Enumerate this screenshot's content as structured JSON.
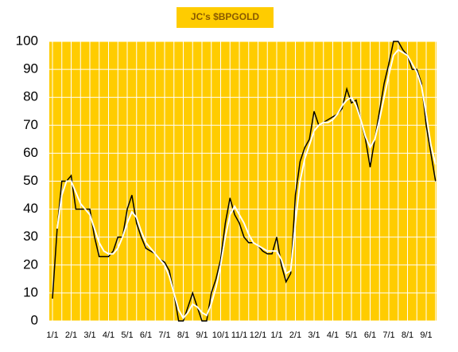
{
  "chart_data": {
    "type": "line",
    "title": "JC's $BPGOLD",
    "categories": [
      "1/1",
      null,
      null,
      null,
      "2/1",
      null,
      null,
      null,
      "3/1",
      null,
      null,
      null,
      "4/1",
      null,
      null,
      null,
      "5/1",
      null,
      null,
      null,
      "6/1",
      null,
      null,
      null,
      "7/1",
      null,
      null,
      null,
      "8/1",
      null,
      null,
      null,
      "9/1",
      null,
      null,
      null,
      "10/1",
      null,
      null,
      null,
      "11/1",
      null,
      null,
      null,
      "12/1",
      null,
      null,
      null,
      "1/1",
      null,
      null,
      null,
      "2/1",
      null,
      null,
      null,
      "3/1",
      null,
      null,
      null,
      "4/1",
      null,
      null,
      null,
      "5/1",
      null,
      null,
      null,
      "6/1",
      null,
      null,
      null,
      "7/1",
      null,
      null,
      null,
      "8/1",
      null,
      null,
      null,
      "9/1",
      null,
      null
    ],
    "series": [
      {
        "color": "#000000",
        "values": [
          8,
          33,
          50,
          50,
          52,
          40,
          40,
          40,
          40,
          30,
          23,
          23,
          23,
          25,
          30,
          30,
          40,
          45,
          35,
          30,
          26,
          25,
          24,
          22,
          21,
          18,
          10,
          0,
          0,
          5,
          10,
          5,
          0,
          0,
          10,
          15,
          22,
          35,
          44,
          38,
          35,
          30,
          28,
          28,
          27,
          25,
          24,
          24,
          30,
          20,
          14,
          17,
          45,
          57,
          62,
          65,
          75,
          70,
          71,
          72,
          73,
          74,
          76,
          83,
          78,
          79,
          72,
          65,
          55,
          65,
          75,
          85,
          92,
          100,
          100,
          97,
          95,
          90,
          90,
          85,
          70,
          60,
          50
        ]
      },
      {
        "color": "#ffffff",
        "values": [
          null,
          33,
          45,
          50,
          50,
          46,
          42,
          40,
          38,
          33,
          28,
          25,
          24,
          24,
          26,
          30,
          35,
          39,
          37,
          32,
          28,
          26,
          24,
          22,
          20,
          16,
          10,
          4,
          1,
          3,
          6,
          5,
          3,
          2,
          6,
          12,
          20,
          30,
          38,
          41,
          38,
          35,
          31,
          28,
          27,
          26,
          25,
          25,
          25,
          22,
          17,
          18,
          35,
          50,
          58,
          63,
          68,
          70,
          71,
          71,
          72,
          74,
          77,
          79,
          80,
          77,
          72,
          66,
          62,
          65,
          72,
          80,
          88,
          95,
          97,
          96,
          95,
          92,
          89,
          84,
          74,
          63,
          56
        ]
      }
    ],
    "ylim": [
      0,
      100
    ],
    "yticks": [
      0,
      10,
      20,
      30,
      40,
      50,
      60,
      70,
      80,
      90,
      100
    ],
    "grid": true,
    "background": "#ffcc00"
  }
}
